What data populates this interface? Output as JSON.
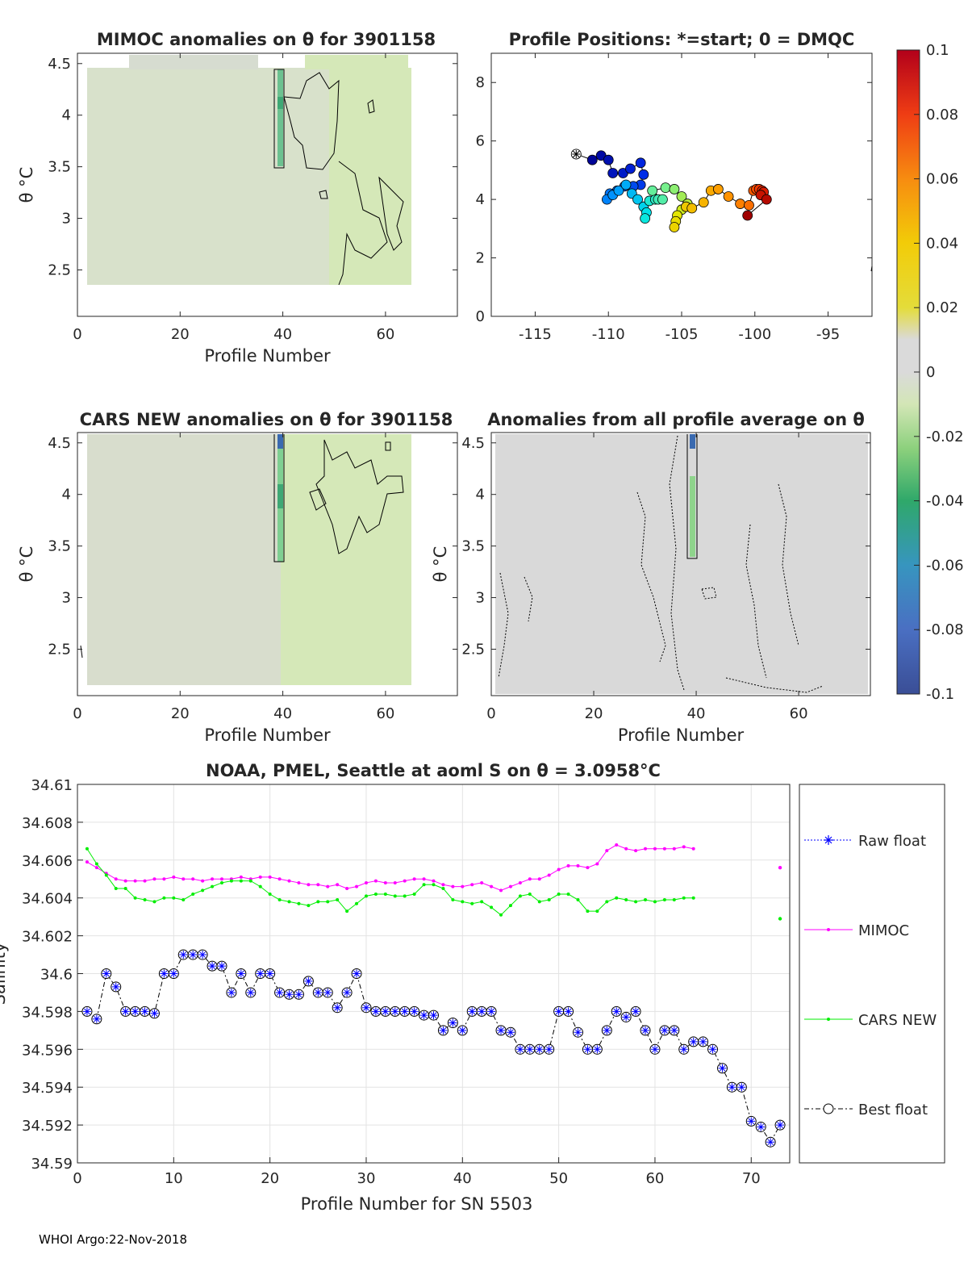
{
  "footer": "WHOI Argo:22-Nov-2018",
  "colors": {
    "raw_float": "#0000ff",
    "mimoc": "#ff00ff",
    "cars": "#00ee00",
    "best_float": "#000000",
    "map_field": "#d5e8b8",
    "anom_bg": "#d9d9d9"
  },
  "chart_data": [
    {
      "id": "mimoc",
      "type": "heatmap",
      "title": "MIMOC anomalies on θ  for 3901158",
      "xlabel": "Profile Number",
      "ylabel": "θ °C",
      "xlim": [
        0,
        74
      ],
      "ylim": [
        2.05,
        4.6
      ],
      "xticks": [
        "0",
        "20",
        "40",
        "60"
      ],
      "yticks": [
        "2.5",
        "3",
        "3.5",
        "4",
        "4.5"
      ]
    },
    {
      "id": "positions",
      "type": "scatter",
      "title": "Profile Positions: *=start; 0 = DMQC",
      "xlabel": "",
      "ylabel": "",
      "xlim": [
        -118,
        -92
      ],
      "ylim": [
        0,
        9
      ],
      "xticks": [
        "-115",
        "-110",
        "-105",
        "-100",
        "-95"
      ],
      "yticks": [
        "0",
        "2",
        "4",
        "6",
        "8"
      ],
      "start": [
        -112.2,
        5.55
      ],
      "points": [
        [
          -112.2,
          5.55
        ],
        [
          -111.1,
          5.35
        ],
        [
          -110.5,
          5.5
        ],
        [
          -110,
          5.35
        ],
        [
          -109.7,
          4.9
        ],
        [
          -109.0,
          4.9
        ],
        [
          -108.5,
          5.05
        ],
        [
          -107.8,
          5.25
        ],
        [
          -107.6,
          4.85
        ],
        [
          -107.8,
          4.5
        ],
        [
          -108.3,
          4.45
        ],
        [
          -108.9,
          4.45
        ],
        [
          -109.4,
          4.3
        ],
        [
          -109.9,
          4.2
        ],
        [
          -110.1,
          4.0
        ],
        [
          -109.7,
          4.15
        ],
        [
          -109.3,
          4.3
        ],
        [
          -108.8,
          4.5
        ],
        [
          -108.4,
          4.2
        ],
        [
          -108.0,
          4.0
        ],
        [
          -107.6,
          3.75
        ],
        [
          -107.4,
          3.55
        ],
        [
          -107.5,
          3.35
        ],
        [
          -107.2,
          3.95
        ],
        [
          -106.8,
          4.0
        ],
        [
          -106.6,
          4.0
        ],
        [
          -106.3,
          4.0
        ],
        [
          -107.0,
          4.3
        ],
        [
          -106.1,
          4.4
        ],
        [
          -105.5,
          4.35
        ],
        [
          -105.0,
          4.1
        ],
        [
          -104.6,
          3.85
        ],
        [
          -105.0,
          3.65
        ],
        [
          -105.3,
          3.45
        ],
        [
          -105.4,
          3.25
        ],
        [
          -105.5,
          3.05
        ],
        [
          -104.7,
          3.75
        ],
        [
          -104.3,
          3.7
        ],
        [
          -103.5,
          3.9
        ],
        [
          -103.0,
          4.3
        ],
        [
          -102.5,
          4.35
        ],
        [
          -101.8,
          4.1
        ],
        [
          -101.0,
          3.85
        ],
        [
          -100.4,
          3.8
        ],
        [
          -100.1,
          4.3
        ],
        [
          -99.9,
          4.35
        ],
        [
          -99.7,
          4.35
        ],
        [
          -99.5,
          4.3
        ],
        [
          -99.4,
          4.25
        ],
        [
          -99.6,
          4.15
        ],
        [
          -99.2,
          4.0
        ],
        [
          -100.5,
          3.45
        ]
      ],
      "colorbar_ticks": [
        "0.1",
        "0.08",
        "0.06",
        "0.04",
        "0.02",
        "0",
        "-0.02",
        "-0.04",
        "-0.06",
        "-0.08",
        "-0.1"
      ],
      "clim": [
        -0.1,
        0.1
      ]
    },
    {
      "id": "cars",
      "type": "heatmap",
      "title": "CARS NEW anomalies on θ for 3901158",
      "xlabel": "Profile Number",
      "ylabel": "θ °C",
      "xlim": [
        0,
        74
      ],
      "ylim": [
        2.05,
        4.6
      ],
      "xticks": [
        "0",
        "20",
        "40",
        "60"
      ],
      "yticks": [
        "2.5",
        "3",
        "3.5",
        "4",
        "4.5"
      ]
    },
    {
      "id": "allprof",
      "type": "heatmap",
      "title": "Anomalies from all profile average on θ",
      "xlabel": "Profile Number",
      "ylabel": "θ °C",
      "xlim": [
        0,
        74
      ],
      "ylim": [
        2.05,
        4.6
      ],
      "xticks": [
        "0",
        "20",
        "40",
        "60"
      ],
      "yticks": [
        "2.5",
        "3",
        "3.5",
        "4",
        "4.5"
      ]
    },
    {
      "id": "salinity",
      "type": "line",
      "title": "NOAA, PMEL, Seattle at aoml S on θ = 3.0958°C",
      "xlabel": "Profile Number for SN 5503",
      "ylabel": "Salinity",
      "xlim": [
        0,
        74
      ],
      "ylim": [
        34.59,
        34.61
      ],
      "xticks": [
        "0",
        "10",
        "20",
        "30",
        "40",
        "50",
        "60",
        "70"
      ],
      "yticks": [
        "34.59",
        "34.592",
        "34.594",
        "34.596",
        "34.598",
        "34.6",
        "34.602",
        "34.604",
        "34.606",
        "34.608",
        "34.61"
      ],
      "legend": [
        "Raw float",
        "MIMOC",
        "CARS NEW",
        "Best float"
      ],
      "series": [
        {
          "name": "MIMOC",
          "x_start": 1,
          "values": [
            34.6059,
            34.6056,
            34.6053,
            34.605,
            34.6049,
            34.6049,
            34.6049,
            34.605,
            34.605,
            34.6051,
            34.605,
            34.605,
            34.6049,
            34.605,
            34.605,
            34.605,
            34.6051,
            34.605,
            34.6051,
            34.6051,
            34.605,
            34.6049,
            34.6048,
            34.6047,
            34.6047,
            34.6046,
            34.6047,
            34.6045,
            34.6046,
            34.6048,
            34.6049,
            34.6048,
            34.6048,
            34.6049,
            34.605,
            34.605,
            34.6049,
            34.6047,
            34.6046,
            34.6046,
            34.6047,
            34.6048,
            34.6046,
            34.6044,
            34.6046,
            34.6048,
            34.605,
            34.605,
            34.6052,
            34.6055,
            34.6057,
            34.6057,
            34.6056,
            34.6058,
            34.6065,
            34.6068,
            34.6066,
            34.6065,
            34.6066,
            34.6066,
            34.6066,
            34.6066,
            34.6067,
            34.6066
          ],
          "extra": [
            [
              73,
              34.6056
            ]
          ]
        },
        {
          "name": "CARS NEW",
          "x_start": 1,
          "values": [
            34.6066,
            34.6058,
            34.6052,
            34.6045,
            34.6045,
            34.604,
            34.6039,
            34.6038,
            34.604,
            34.604,
            34.6039,
            34.6042,
            34.6044,
            34.6046,
            34.6048,
            34.6049,
            34.6049,
            34.6049,
            34.6046,
            34.6042,
            34.6039,
            34.6038,
            34.6037,
            34.6036,
            34.6038,
            34.6038,
            34.6039,
            34.6033,
            34.6037,
            34.6041,
            34.6042,
            34.6042,
            34.6041,
            34.6041,
            34.6042,
            34.6047,
            34.6047,
            34.6045,
            34.6039,
            34.6038,
            34.6037,
            34.6038,
            34.6035,
            34.6031,
            34.6036,
            34.6041,
            34.6042,
            34.6038,
            34.6039,
            34.6042,
            34.6042,
            34.6039,
            34.6033,
            34.6033,
            34.6038,
            34.604,
            34.6039,
            34.6038,
            34.6039,
            34.6038,
            34.6039,
            34.6039,
            34.604,
            34.604
          ],
          "extra": [
            [
              73,
              34.6029
            ]
          ]
        },
        {
          "name": "Best float",
          "x_start": 1,
          "values": [
            34.598,
            34.5976,
            34.6,
            34.5993,
            34.598,
            34.598,
            34.598,
            34.5979,
            34.6,
            34.6,
            34.601,
            34.601,
            34.601,
            34.6004,
            34.6004,
            34.599,
            34.6,
            34.599,
            34.6,
            34.6,
            34.599,
            34.5989,
            34.5989,
            34.5996,
            34.599,
            34.599,
            34.5982,
            34.599,
            34.6,
            34.5982,
            34.598,
            34.598,
            34.598,
            34.598,
            34.598,
            34.5978,
            34.5978,
            34.597,
            34.5974,
            34.597,
            34.598,
            34.598,
            34.598,
            34.597,
            34.5969,
            34.596,
            34.596,
            34.596,
            34.596,
            34.598,
            34.598,
            34.5969,
            34.596,
            34.596,
            34.597,
            34.598,
            34.5977,
            34.598,
            34.597,
            34.596,
            34.597,
            34.597,
            34.596,
            34.5964,
            34.5964,
            34.596,
            34.595,
            34.594,
            34.594,
            34.5922,
            34.5919,
            34.5911,
            34.592
          ]
        }
      ]
    }
  ]
}
